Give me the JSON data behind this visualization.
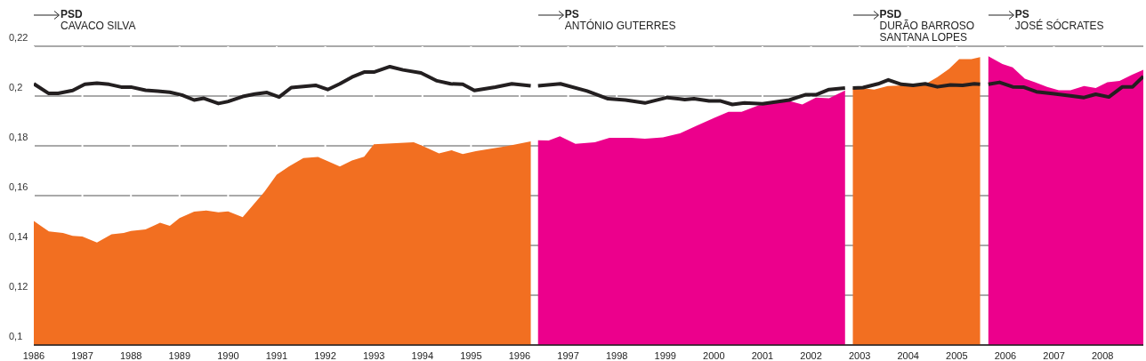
{
  "chart_data": {
    "type": "area",
    "xlim": [
      1986,
      2008.84
    ],
    "xticks": [
      1986,
      1987,
      1988,
      1989,
      1990,
      1991,
      1992,
      1993,
      1994,
      1995,
      1996,
      1997,
      1998,
      1999,
      2000,
      2001,
      2002,
      2003,
      2004,
      2005,
      2006,
      2007,
      2008
    ],
    "ylim": [
      0.1,
      0.22
    ],
    "yticks": [
      {
        "value": 0.1,
        "label": "0,1"
      },
      {
        "value": 0.12,
        "label": "0,12"
      },
      {
        "value": 0.14,
        "label": "0,14"
      },
      {
        "value": 0.16,
        "label": "0,16"
      },
      {
        "value": 0.18,
        "label": "0,18"
      },
      {
        "value": 0.2,
        "label": "0,2"
      },
      {
        "value": 0.22,
        "label": "0,22"
      }
    ],
    "grid": true,
    "annotations": [
      "PSD\nCAVACO SILVA",
      "PS\nANTÓNIO GUTERRES",
      "PSD\nDURÃO BARROSO\nSANTANA LOPES",
      "PS\nJOSÉ SÓCRATES"
    ],
    "series": [
      {
        "color": "#f26f21",
        "x": [
          1986,
          1986.31,
          1986.6,
          1986.8,
          1987,
          1987.3,
          1987.6,
          1987.85,
          1988,
          1988.3,
          1988.6,
          1988.8,
          1989,
          1989.3,
          1989.55,
          1989.8,
          1990,
          1990.3,
          1990.75,
          1991,
          1991.25,
          1991.55,
          1991.85,
          1992.05,
          1992.3,
          1992.55,
          1992.8,
          1993,
          1993.82,
          1994,
          1994.34,
          1994.6,
          1994.83,
          1995.1,
          1995.77,
          1996.23,
          1996.3,
          2002.86,
          2003.03,
          2003.3,
          2003.58,
          2003.98,
          2004.35,
          2004.6,
          2004.84,
          2005.05,
          2005.3,
          2005.48
        ],
        "values": [
          0.1498,
          0.1456,
          0.145,
          0.1438,
          0.1436,
          0.1412,
          0.1445,
          0.145,
          0.1458,
          0.1464,
          0.1491,
          0.1479,
          0.151,
          0.1536,
          0.154,
          0.1533,
          0.1537,
          0.1513,
          0.1616,
          0.1684,
          0.1717,
          0.1751,
          0.1755,
          0.1738,
          0.1717,
          0.1741,
          0.1756,
          0.1806,
          0.1814,
          0.18,
          0.177,
          0.1782,
          0.1767,
          0.1779,
          0.18,
          0.1818,
          null,
          0.2032,
          0.2032,
          0.2026,
          0.204,
          0.2043,
          0.2047,
          0.2076,
          0.2109,
          0.2148,
          0.2148,
          0.2156
        ]
      },
      {
        "color": "#ec008c",
        "x": [
          1996.38,
          1996.6,
          1996.83,
          1997.15,
          1997.55,
          1997.85,
          1998.3,
          1998.58,
          1998.95,
          1999.3,
          1999.65,
          2000.02,
          2000.3,
          2000.57,
          2000.93,
          2001.0,
          2001.48,
          2001.82,
          2002.1,
          2002.37,
          2002.7,
          2002.78,
          2005.65,
          2005.94,
          2006.15,
          2006.4,
          2006.61,
          2006.86,
          2007.1,
          2007.34,
          2007.62,
          2007.86,
          2008.1,
          2008.35,
          2008.6,
          2008.84
        ],
        "values": [
          0.1822,
          0.1821,
          0.1838,
          0.1808,
          0.1814,
          0.1832,
          0.1832,
          0.1829,
          0.1834,
          0.185,
          0.1881,
          0.1913,
          0.1937,
          0.1937,
          0.1963,
          0.1963,
          0.1984,
          0.1966,
          0.1994,
          0.1991,
          0.2022,
          null,
          0.216,
          0.2129,
          0.2115,
          0.207,
          0.2055,
          0.2037,
          0.2023,
          0.2023,
          0.204,
          0.2032,
          0.2055,
          0.2061,
          0.2085,
          0.2105
        ]
      },
      {
        "type": "line",
        "color": "#231f20",
        "x": [
          1986,
          1986.3,
          1986.5,
          1986.8,
          1987.05,
          1987.3,
          1987.55,
          1987.8,
          1988,
          1988.3,
          1988.55,
          1988.8,
          1989.05,
          1989.3,
          1989.5,
          1989.8,
          1990,
          1990.3,
          1990.55,
          1990.8,
          1991.05,
          1991.3,
          1991.8,
          1992.05,
          1992.3,
          1992.55,
          1992.8,
          1993,
          1993.33,
          1993.6,
          1993.97,
          1994.3,
          1994.58,
          1994.83,
          1995.07,
          1995.5,
          1995.84,
          1996.23,
          1996.3,
          1996.38,
          1996.84,
          1997.39,
          1997.82,
          1998.18,
          1998.58,
          1999.04,
          1999.4,
          1999.59,
          1999.9,
          2000.14,
          2000.38,
          2000.63,
          2001,
          2001.55,
          2001.88,
          2002.1,
          2002.37,
          2002.7,
          2002.78,
          2002.86,
          2003.07,
          2003.38,
          2003.59,
          2003.86,
          2004.1,
          2004.35,
          2004.6,
          2004.87,
          2005.12,
          2005.36,
          2005.48,
          2005.56,
          2005.65,
          2005.88,
          2006.15,
          2006.37,
          2006.64,
          2006.97,
          2007.34,
          2007.62,
          2007.86,
          2008.13,
          2008.41,
          2008.62,
          2008.84
        ],
        "values": [
          0.2049,
          0.2011,
          0.2011,
          0.2022,
          0.2047,
          0.2052,
          0.2047,
          0.2036,
          0.2036,
          0.2023,
          0.202,
          0.2015,
          0.2004,
          0.1984,
          0.1991,
          0.197,
          0.1978,
          0.1998,
          0.2008,
          0.2014,
          0.1996,
          0.2034,
          0.2043,
          0.2026,
          0.2049,
          0.2076,
          0.2096,
          0.2096,
          0.2118,
          0.2105,
          0.2093,
          0.2061,
          0.2049,
          0.2047,
          0.2022,
          0.2036,
          0.2049,
          0.2041,
          null,
          0.2041,
          0.2049,
          0.202,
          0.1989,
          0.1984,
          0.1972,
          0.1994,
          0.1986,
          0.1989,
          0.198,
          0.198,
          0.1966,
          0.1972,
          0.1969,
          0.1984,
          0.2005,
          0.2005,
          0.2026,
          0.2032,
          null,
          0.2032,
          0.2034,
          0.2049,
          0.2065,
          0.2047,
          0.2043,
          0.2049,
          0.2037,
          0.2045,
          0.2043,
          0.2049,
          0.2047,
          null,
          0.2047,
          0.2055,
          0.2037,
          0.2036,
          0.2017,
          0.201,
          0.2001,
          0.1994,
          0.2007,
          0.1996,
          0.2037,
          0.2037,
          0.2079
        ]
      }
    ]
  }
}
